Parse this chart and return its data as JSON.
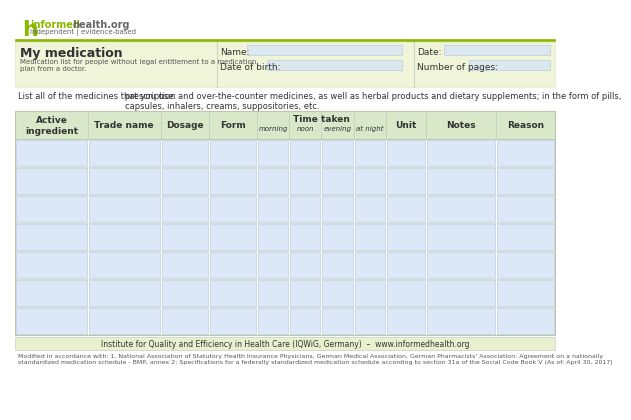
{
  "bg_color": "#ffffff",
  "header_bg": "#f5f5dc",
  "cell_bg": "#d6e4f7",
  "cell_border": "#b0c4d8",
  "header_cell_bg": "#e8efd8",
  "green_accent": "#8ab800",
  "light_yellow_bg": "#f0f4d8",
  "title_box_bg": "#e8f0d0",
  "logo_green": "#8ab800",
  "logo_gray": "#666666",
  "footer_bg": "#e8f0d0",
  "input_field_bg": "#dce8f0",
  "table_header_bg": "#d8e8c8",
  "table_row_bg": "#dce8f8",
  "table_border": "#b8c8b0",
  "title": "My medication",
  "subtitle": "Medication list for people without legal entitlement to a medication\nplan from a doctor.",
  "name_label": "Name:",
  "dob_label": "Date of birth:",
  "date_label": "Date:",
  "pages_label": "Number of pages:",
  "list_intro": "List all of the medicines that you use:",
  "list_desc": "prescription and over-the-counter medicines, as well as herbal products and dietary supplements; in the form of pills,\ncapsules, inhalers, creams, suppositories, etc.",
  "col_headers": [
    "Active\ningredient",
    "Trade name",
    "Dosage",
    "Form",
    "Time taken",
    "Unit",
    "Notes",
    "Reason"
  ],
  "time_subheaders": [
    "morning",
    "noon",
    "evening",
    "at night"
  ],
  "num_rows": 7,
  "footer_text": "Institute for Quality and Efficiency in Health Care (IQWiG, Germany)  –  www.informedhealth.org",
  "footnote": "Modified in accordance with: 1. National Association of Statutory Health Insurance Physicians, German Medical Association, German Pharmacists' Association: Agreement on a nationally\nstandardized medication schedule - BMP, annex 2: Specifications for a federally standardized medication schedule according to section 31a of the Social Code Book V (As of: April 30, 2017)"
}
